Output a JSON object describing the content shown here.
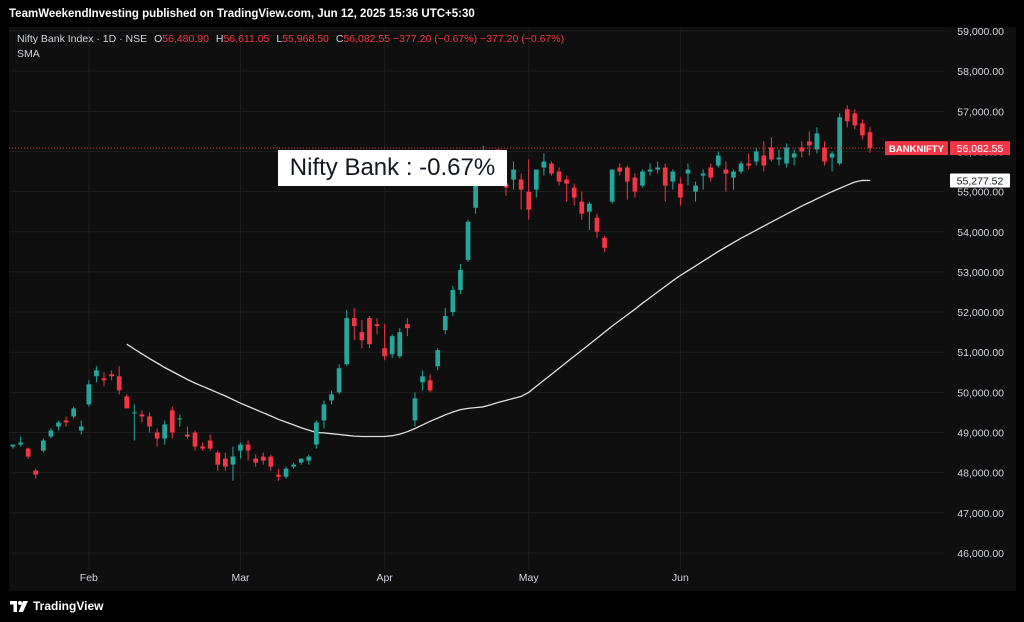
{
  "header": {
    "published_text": "TeamWeekendInvesting published on TradingView.com, Jun 12, 2025 15:36 UTC+5:30"
  },
  "legend": {
    "symbol": "Nifty Bank Index · 1D · NSE",
    "o_label": "O",
    "o_value": "56,480.90",
    "h_label": "H",
    "h_value": "56,611.05",
    "l_label": "L",
    "l_value": "55,968.50",
    "c_label": "C",
    "c_value": "56,082.55",
    "change": "−377.20 (−0.67%)",
    "change2": "−377.20 (−0.67%)",
    "indicator": "SMA"
  },
  "annotation": {
    "text": "Nifty Bank : -0.67%"
  },
  "price_tags": {
    "symbol_tag": "BANKNIFTY",
    "last_price": "56,082.55",
    "sma_value": "55,277.52"
  },
  "footer": {
    "brand": "TradingView"
  },
  "colors": {
    "up": "#26a69a",
    "down": "#f23645",
    "sma": "#e0e0e0",
    "grid": "#1e1e1e",
    "background": "#0f0f0f"
  },
  "chart_data": {
    "type": "candlestick",
    "yaxis": {
      "ticks": [
        46000,
        47000,
        48000,
        49000,
        50000,
        51000,
        52000,
        53000,
        54000,
        55000,
        56000,
        57000,
        58000,
        59000
      ],
      "tick_labels": [
        "46,000.00",
        "47,000.00",
        "48,000.00",
        "49,000.00",
        "50,000.00",
        "51,000.00",
        "52,000.00",
        "53,000.00",
        "54,000.00",
        "55,000.00",
        "56,000.00",
        "57,000.00",
        "58,000.00",
        "59,000.00"
      ],
      "range": [
        45700,
        59100
      ]
    },
    "xaxis": {
      "months": [
        {
          "label": "Feb",
          "index": 10
        },
        {
          "label": "Mar",
          "index": 30
        },
        {
          "label": "Apr",
          "index": 49
        },
        {
          "label": "May",
          "index": 68
        },
        {
          "label": "Jun",
          "index": 88
        }
      ]
    },
    "candles": [
      [
        48650,
        48700,
        48600,
        48700
      ],
      [
        48700,
        48900,
        48650,
        48750
      ],
      [
        48600,
        48620,
        48350,
        48400
      ],
      [
        48050,
        48100,
        47850,
        47950
      ],
      [
        48550,
        48850,
        48500,
        48800
      ],
      [
        48900,
        49100,
        48850,
        49050
      ],
      [
        49150,
        49300,
        49050,
        49250
      ],
      [
        49300,
        49400,
        49150,
        49250
      ],
      [
        49400,
        49650,
        49350,
        49600
      ],
      [
        49050,
        49300,
        48950,
        49150
      ],
      [
        49700,
        50300,
        49650,
        50200
      ],
      [
        50400,
        50650,
        50250,
        50550
      ],
      [
        50350,
        50500,
        50150,
        50300
      ],
      [
        50450,
        50550,
        50300,
        50400
      ],
      [
        50400,
        50650,
        49950,
        50050
      ],
      [
        49900,
        49950,
        49600,
        49600
      ],
      [
        49500,
        49700,
        48800,
        49500
      ],
      [
        49450,
        49550,
        49250,
        49400
      ],
      [
        49400,
        49500,
        49000,
        49150
      ],
      [
        49000,
        49100,
        48650,
        48850
      ],
      [
        48850,
        49300,
        48700,
        49200
      ],
      [
        49550,
        49650,
        48850,
        49000
      ],
      [
        49350,
        49450,
        49150,
        49350
      ],
      [
        48950,
        49150,
        48850,
        48900
      ],
      [
        49000,
        49050,
        48550,
        48650
      ],
      [
        48650,
        48750,
        48550,
        48600
      ],
      [
        48800,
        48950,
        48550,
        48600
      ],
      [
        48500,
        48550,
        48050,
        48200
      ],
      [
        48350,
        48500,
        48050,
        48150
      ],
      [
        48200,
        48650,
        47800,
        48400
      ],
      [
        48550,
        48750,
        48350,
        48700
      ],
      [
        48700,
        48800,
        48300,
        48550
      ],
      [
        48350,
        48450,
        48150,
        48250
      ],
      [
        48400,
        48500,
        48200,
        48300
      ],
      [
        48400,
        48450,
        48050,
        48150
      ],
      [
        47950,
        48100,
        47800,
        47900
      ],
      [
        47900,
        48150,
        47850,
        48100
      ],
      [
        48150,
        48250,
        48100,
        48200
      ],
      [
        48250,
        48350,
        48200,
        48350
      ],
      [
        48300,
        48450,
        48200,
        48400
      ],
      [
        48700,
        49300,
        48600,
        49250
      ],
      [
        49300,
        49800,
        49100,
        49700
      ],
      [
        49800,
        50050,
        49700,
        49950
      ],
      [
        50000,
        50700,
        49950,
        50600
      ],
      [
        50700,
        52050,
        50650,
        51850
      ],
      [
        51850,
        52100,
        51300,
        51650
      ],
      [
        51500,
        51800,
        51100,
        51300
      ],
      [
        51850,
        51900,
        51100,
        51200
      ],
      [
        51700,
        51850,
        51450,
        51650
      ],
      [
        51100,
        51700,
        50800,
        50900
      ],
      [
        50950,
        51450,
        50850,
        51400
      ],
      [
        50900,
        51600,
        50850,
        51500
      ],
      [
        51700,
        51850,
        51400,
        51600
      ],
      [
        49300,
        50000,
        49150,
        49850
      ],
      [
        50250,
        50550,
        50050,
        50400
      ],
      [
        50300,
        50450,
        50000,
        50050
      ],
      [
        50650,
        51100,
        50550,
        51050
      ],
      [
        51550,
        52100,
        51450,
        51900
      ],
      [
        52000,
        52650,
        51900,
        52550
      ],
      [
        52550,
        53200,
        52450,
        53050
      ],
      [
        53300,
        54300,
        53250,
        54250
      ],
      [
        54600,
        55200,
        54450,
        55150
      ],
      [
        55400,
        56150,
        55350,
        55800
      ],
      [
        55850,
        56000,
        55600,
        55600
      ],
      [
        56050,
        56050,
        55150,
        55250
      ],
      [
        55200,
        55450,
        54900,
        55100
      ],
      [
        55300,
        55750,
        55050,
        55550
      ],
      [
        55300,
        55450,
        54550,
        55050
      ],
      [
        55000,
        55800,
        54300,
        54550
      ],
      [
        55050,
        55550,
        54850,
        55550
      ],
      [
        55600,
        55950,
        55400,
        55750
      ],
      [
        55700,
        55750,
        55400,
        55450
      ],
      [
        55500,
        55600,
        55150,
        55250
      ],
      [
        55300,
        55400,
        54750,
        55200
      ],
      [
        55100,
        55200,
        54650,
        54850
      ],
      [
        54750,
        55000,
        54300,
        54450
      ],
      [
        54500,
        54750,
        54050,
        54700
      ],
      [
        54350,
        54450,
        53850,
        54000
      ],
      [
        53850,
        53900,
        53500,
        53600
      ],
      [
        54750,
        55550,
        54700,
        55550
      ],
      [
        55600,
        55700,
        55400,
        55500
      ],
      [
        55600,
        55650,
        54800,
        55250
      ],
      [
        55350,
        55450,
        54850,
        55000
      ],
      [
        55150,
        55550,
        55100,
        55500
      ],
      [
        55500,
        55700,
        55400,
        55550
      ],
      [
        55550,
        55750,
        55450,
        55600
      ],
      [
        55600,
        55700,
        54750,
        55150
      ],
      [
        55250,
        55550,
        55050,
        55500
      ],
      [
        55200,
        55350,
        54650,
        54850
      ],
      [
        55450,
        55700,
        55150,
        55550
      ],
      [
        55000,
        55250,
        54750,
        55150
      ],
      [
        55400,
        55550,
        55050,
        55450
      ],
      [
        55600,
        55700,
        55250,
        55350
      ],
      [
        55650,
        56000,
        55600,
        55900
      ],
      [
        55550,
        55750,
        55000,
        55450
      ],
      [
        55350,
        55550,
        55050,
        55500
      ],
      [
        55500,
        55750,
        55450,
        55700
      ],
      [
        55700,
        55950,
        55550,
        55650
      ],
      [
        55750,
        56100,
        55650,
        56000
      ],
      [
        55900,
        56250,
        55500,
        55650
      ],
      [
        56100,
        56350,
        55750,
        55800
      ],
      [
        55800,
        56050,
        55650,
        55850
      ],
      [
        55700,
        56200,
        55600,
        56100
      ],
      [
        55850,
        56050,
        55650,
        55950
      ],
      [
        56100,
        56250,
        55850,
        56000
      ],
      [
        56250,
        56500,
        55900,
        56150
      ],
      [
        56050,
        56600,
        55950,
        56450
      ],
      [
        56100,
        56250,
        55650,
        55750
      ],
      [
        55850,
        56000,
        55500,
        55950
      ],
      [
        55700,
        56950,
        55650,
        56850
      ],
      [
        57050,
        57150,
        56600,
        56750
      ],
      [
        56950,
        57050,
        56550,
        56650
      ],
      [
        56700,
        56800,
        56300,
        56400
      ],
      [
        56480.9,
        56611.05,
        55968.5,
        56082.55
      ]
    ],
    "sma": [
      51200,
      51080,
      50960,
      50840,
      50730,
      50620,
      50520,
      50420,
      50320,
      50230,
      50150,
      50070,
      49990,
      49910,
      49820,
      49730,
      49650,
      49570,
      49490,
      49410,
      49330,
      49260,
      49190,
      49120,
      49060,
      49000,
      48990,
      48970,
      48950,
      48930,
      48910,
      48900,
      48900,
      48900,
      48900,
      48920,
      48960,
      49020,
      49100,
      49190,
      49280,
      49360,
      49440,
      49510,
      49570,
      49600,
      49620,
      49640,
      49690,
      49750,
      49800,
      49850,
      49900,
      50000,
      50150,
      50300,
      50450,
      50600,
      50750,
      50900,
      51050,
      51200,
      51350,
      51500,
      51650,
      51790,
      51930,
      52070,
      52220,
      52360,
      52500,
      52640,
      52780,
      52910,
      53030,
      53150,
      53270,
      53390,
      53510,
      53620,
      53730,
      53840,
      53940,
      54040,
      54140,
      54240,
      54340,
      54440,
      54540,
      54640,
      54730,
      54820,
      54910,
      55000,
      55080,
      55160,
      55240,
      55280,
      55277.52
    ]
  }
}
